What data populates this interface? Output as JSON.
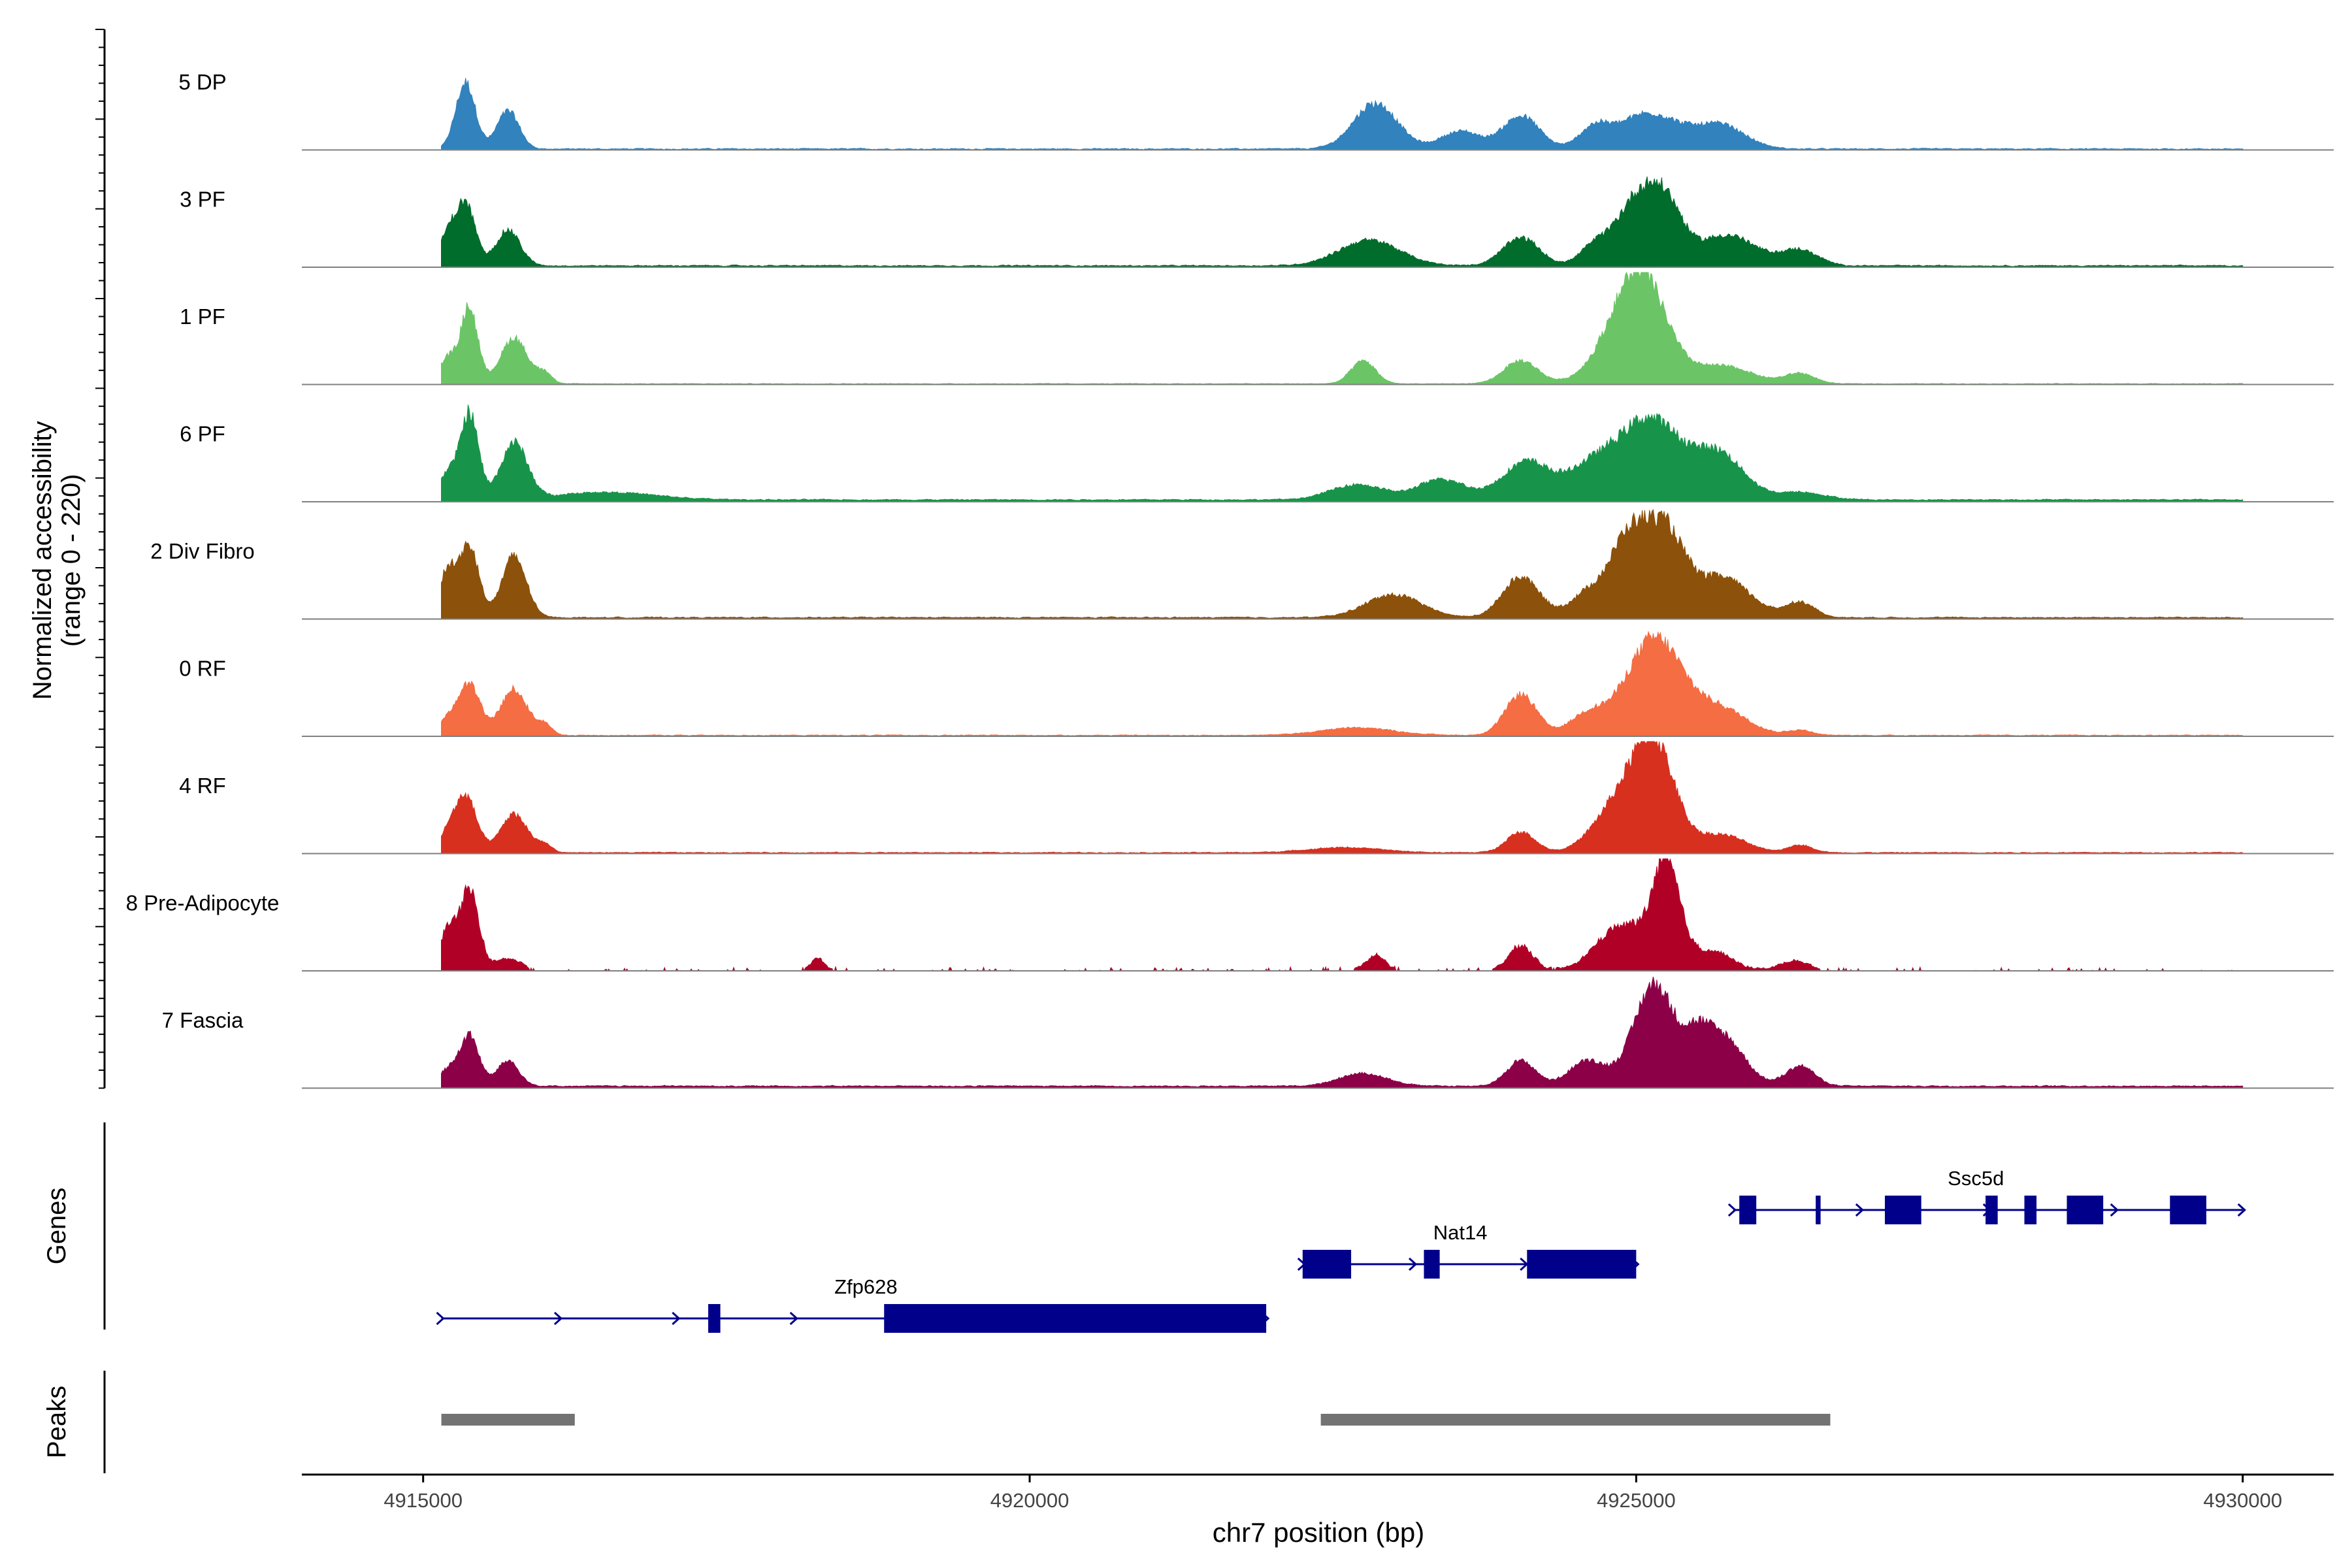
{
  "chart_data": {
    "type": "area",
    "chrom": "chr7",
    "xlabel": "chr7 position (bp)",
    "ylabel": "Normalized accessibility",
    "ylabel_range": "(range 0 - 220)",
    "ylim": [
      0,
      220
    ],
    "xlim": [
      4914000,
      4930750
    ],
    "x_ticks": [
      4915000,
      4920000,
      4925000,
      4930000
    ],
    "x_tick_labels": [
      "4915000",
      "4920000",
      "4925000",
      "4930000"
    ],
    "tracks": [
      {
        "name": "5 DP",
        "color": "#3182BD",
        "baseline": 2,
        "wiggle": 2,
        "start": 4915150,
        "end": 4930000,
        "peaks": [
          [
            4915350,
            130,
            80
          ],
          [
            4915700,
            75,
            90
          ],
          [
            4922850,
            90,
            180
          ],
          [
            4923550,
            35,
            160
          ],
          [
            4924050,
            65,
            150
          ],
          [
            4924650,
            35,
            120
          ],
          [
            4925100,
            70,
            260
          ],
          [
            4925700,
            45,
            200
          ]
        ]
      },
      {
        "name": "3 PF",
        "color": "#006D2C",
        "baseline": 3,
        "wiggle": 2,
        "start": 4915150,
        "end": 4930000,
        "peaks": [
          [
            4915200,
            55,
            70
          ],
          [
            4915350,
            120,
            80
          ],
          [
            4915700,
            70,
            100
          ],
          [
            4922800,
            50,
            250
          ],
          [
            4924050,
            55,
            150
          ],
          [
            4924650,
            35,
            120
          ],
          [
            4925000,
            125,
            170
          ],
          [
            4925250,
            100,
            140
          ],
          [
            4925750,
            60,
            240
          ],
          [
            4926350,
            30,
            150
          ]
        ]
      },
      {
        "name": "1 PF",
        "color": "#6BC566",
        "baseline": 1.5,
        "wiggle": 1,
        "start": 4915150,
        "end": 4930000,
        "peaks": [
          [
            4915200,
            50,
            70
          ],
          [
            4915380,
            150,
            70
          ],
          [
            4915750,
            90,
            110
          ],
          [
            4916000,
            20,
            60
          ],
          [
            4922750,
            45,
            100
          ],
          [
            4924050,
            45,
            140
          ],
          [
            4924800,
            50,
            200
          ],
          [
            4925050,
            200,
            200
          ],
          [
            4925700,
            35,
            250
          ],
          [
            4926350,
            20,
            120
          ]
        ]
      },
      {
        "name": "6 PF",
        "color": "#18944A",
        "baseline": 4,
        "wiggle": 2,
        "start": 4915150,
        "end": 4930000,
        "peaks": [
          [
            4915200,
            50,
            70
          ],
          [
            4915380,
            170,
            75
          ],
          [
            4915750,
            110,
            110
          ],
          [
            4916500,
            15,
            400
          ],
          [
            4922700,
            30,
            220
          ],
          [
            4923400,
            40,
            200
          ],
          [
            4924100,
            75,
            200
          ],
          [
            4924600,
            45,
            180
          ],
          [
            4925100,
            160,
            280
          ],
          [
            4925700,
            80,
            200
          ],
          [
            4926350,
            15,
            200
          ]
        ]
      },
      {
        "name": "2 Div Fibro",
        "color": "#8C510A",
        "baseline": 3,
        "wiggle": 2,
        "start": 4915150,
        "end": 4930000,
        "peaks": [
          [
            4915200,
            90,
            70
          ],
          [
            4915380,
            140,
            80
          ],
          [
            4915750,
            120,
            100
          ],
          [
            4923000,
            45,
            230
          ],
          [
            4924050,
            80,
            150
          ],
          [
            4924600,
            45,
            150
          ],
          [
            4924950,
            160,
            160
          ],
          [
            4925250,
            150,
            150
          ],
          [
            4925700,
            80,
            230
          ],
          [
            4926350,
            30,
            120
          ]
        ]
      },
      {
        "name": "0 RF",
        "color": "#F46D43",
        "baseline": 2,
        "wiggle": 1.5,
        "start": 4915150,
        "end": 4930000,
        "peaks": [
          [
            4915200,
            30,
            70
          ],
          [
            4915380,
            100,
            90
          ],
          [
            4915750,
            90,
            110
          ],
          [
            4916000,
            20,
            60
          ],
          [
            4922700,
            15,
            300
          ],
          [
            4924050,
            80,
            130
          ],
          [
            4924600,
            40,
            150
          ],
          [
            4925150,
            190,
            230
          ],
          [
            4925700,
            50,
            220
          ],
          [
            4926350,
            10,
            100
          ]
        ]
      },
      {
        "name": "4 RF",
        "color": "#D7301F",
        "baseline": 2,
        "wiggle": 1.5,
        "start": 4915150,
        "end": 4930000,
        "peaks": [
          [
            4915200,
            30,
            70
          ],
          [
            4915350,
            110,
            90
          ],
          [
            4915750,
            75,
            110
          ],
          [
            4916000,
            15,
            60
          ],
          [
            4922600,
            10,
            300
          ],
          [
            4924050,
            40,
            120
          ],
          [
            4924850,
            90,
            200
          ],
          [
            4925150,
            200,
            170
          ],
          [
            4925700,
            35,
            200
          ],
          [
            4926350,
            15,
            100
          ]
        ]
      },
      {
        "name": "8 Pre-Adipocyte",
        "color": "#B10026",
        "baseline": 0,
        "wiggle": 5,
        "start": 4915150,
        "end": 4930000,
        "peaks": [
          [
            4915200,
            80,
            60
          ],
          [
            4915380,
            160,
            80
          ],
          [
            4915700,
            25,
            100
          ],
          [
            4918250,
            25,
            60
          ],
          [
            4922850,
            30,
            80
          ],
          [
            4924050,
            50,
            100
          ],
          [
            4924900,
            90,
            220
          ],
          [
            4925250,
            190,
            110
          ],
          [
            4925600,
            40,
            180
          ],
          [
            4926300,
            20,
            120
          ]
        ]
      },
      {
        "name": "7 Fascia",
        "color": "#8B0047",
        "baseline": 4,
        "wiggle": 2,
        "start": 4915150,
        "end": 4930000,
        "peaks": [
          [
            4915200,
            30,
            70
          ],
          [
            4915380,
            100,
            80
          ],
          [
            4915700,
            50,
            90
          ],
          [
            4922750,
            25,
            200
          ],
          [
            4924050,
            50,
            120
          ],
          [
            4924600,
            50,
            150
          ],
          [
            4925150,
            200,
            170
          ],
          [
            4925500,
            50,
            100
          ],
          [
            4925700,
            100,
            180
          ],
          [
            4926350,
            40,
            120
          ]
        ]
      }
    ],
    "gene_track_label": "Genes",
    "genes": [
      {
        "name": "Zfp628",
        "row": 3,
        "start": 4915150,
        "end": 4921950,
        "strand": "+",
        "exons": [
          [
            4917350,
            4917450
          ],
          [
            4918800,
            4921950
          ]
        ],
        "label_pos": 4918650
      },
      {
        "name": "Nat14",
        "row": 2,
        "start": 4922250,
        "end": 4925000,
        "strand": "+",
        "exons": [
          [
            4922250,
            4922650
          ],
          [
            4923250,
            4923380
          ],
          [
            4924100,
            4925000
          ]
        ],
        "label_pos": 4923550
      },
      {
        "name": "Ssc5d",
        "row": 1,
        "start": 4925800,
        "end": 4930000,
        "strand": "+",
        "exons": [
          [
            4925850,
            4925990
          ],
          [
            4926480,
            4926520
          ],
          [
            4927050,
            4927350
          ],
          [
            4927880,
            4927980
          ],
          [
            4928200,
            4928300
          ],
          [
            4928550,
            4928850
          ],
          [
            4929400,
            4929700
          ]
        ],
        "label_pos": 4927800
      }
    ],
    "peak_track_label": "Peaks",
    "peak_regions": [
      [
        4915150,
        4916250
      ],
      [
        4922400,
        4926600
      ]
    ],
    "colors": {
      "axis": "#000000",
      "baseline": "#7F7F7F",
      "gene": "#00008B",
      "peak_region": "#737373",
      "tick_label": "#444444"
    }
  }
}
